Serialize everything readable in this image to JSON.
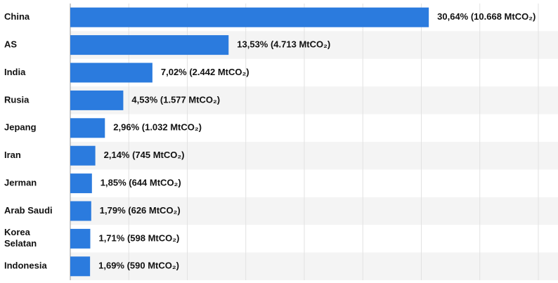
{
  "chart_data": {
    "type": "hbar",
    "categories": [
      "China",
      "AS",
      "India",
      "Rusia",
      "Jepang",
      "Iran",
      "Jerman",
      "Arab Saudi",
      "Korea Selatan",
      "Indonesia"
    ],
    "values": [
      30.64,
      13.53,
      7.02,
      4.53,
      2.96,
      2.14,
      1.85,
      1.79,
      1.71,
      1.69
    ],
    "value_labels": [
      "30,64% (10.668 MtCO₂)",
      "13,53% (4.713 MtCO₂)",
      "7,02% (2.442 MtCO₂)",
      "4,53% (1.577 MtCO₂)",
      "2,96% (1.032 MtCO₂)",
      "2,14% (745 MtCO₂)",
      "1,85% (644 MtCO₂)",
      "1,79% (626 MtCO₂)",
      "1,71% (598 MtCO₂)",
      "1,69% (590 MtCO₂)"
    ],
    "color": "#2b7bde",
    "xlim": [
      0,
      40
    ],
    "xticks": [
      0,
      5,
      10,
      15,
      20,
      25,
      30,
      35,
      40
    ],
    "grid": true
  }
}
